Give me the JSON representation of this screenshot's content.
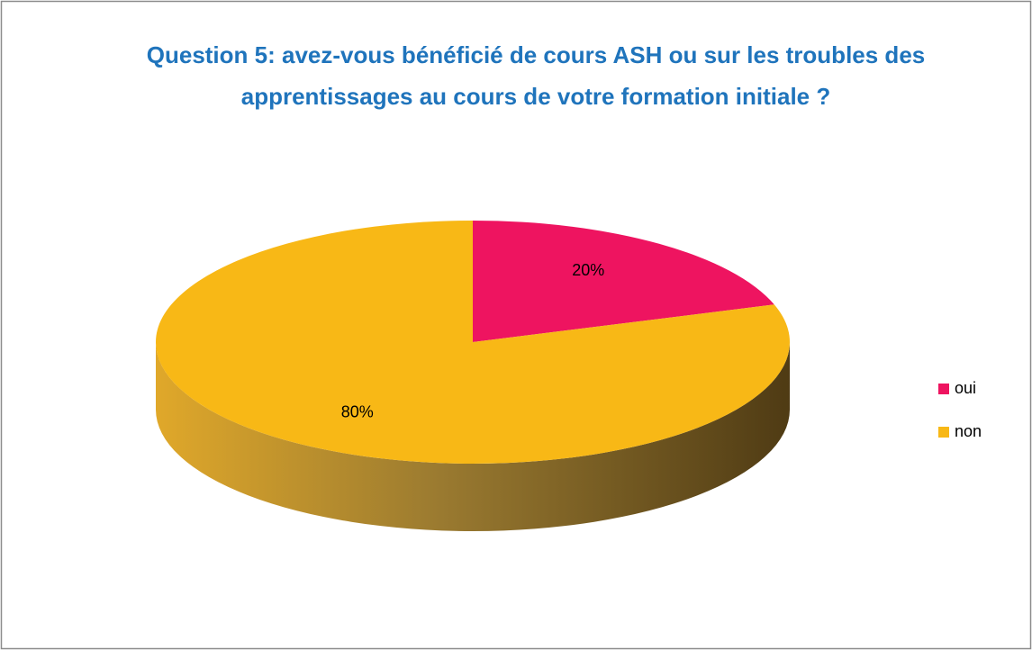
{
  "chart_data": {
    "type": "pie",
    "title": "Question 5: avez-vous bénéficié de cours ASH ou sur les troubles des apprentissages au cours de votre formation initiale ?",
    "categories": [
      "oui",
      "non"
    ],
    "values": [
      20,
      80
    ],
    "value_labels": [
      "20%",
      "80%"
    ],
    "colors": [
      "#ee1460",
      "#f8b816"
    ],
    "legend": "right"
  }
}
